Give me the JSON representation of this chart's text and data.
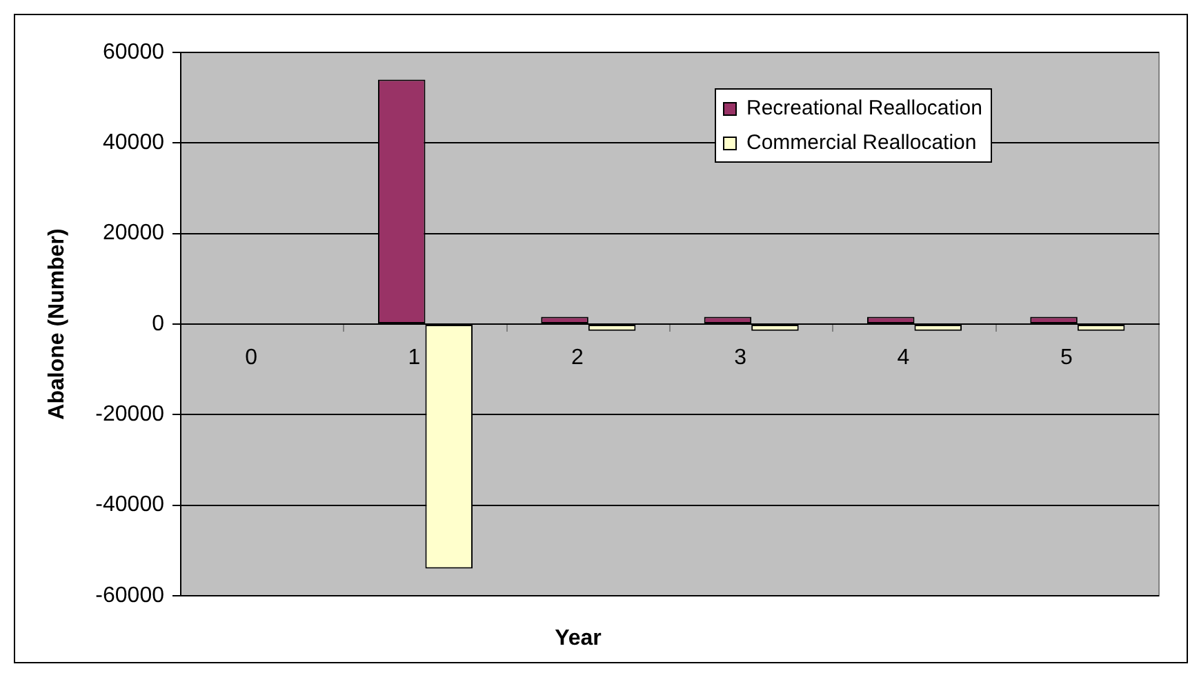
{
  "chart_data": {
    "type": "bar",
    "xlabel": "Year",
    "ylabel": "Abalone (Number)",
    "categories": [
      "0",
      "1",
      "2",
      "3",
      "4",
      "5"
    ],
    "series": [
      {
        "name": "Recreational Reallocation",
        "color": "#993366",
        "values": [
          0,
          54000,
          1600,
          1600,
          1600,
          1600
        ]
      },
      {
        "name": "Commercial Reallocation",
        "color": "#ffffcc",
        "values": [
          0,
          -54000,
          -1500,
          -1500,
          -1500,
          -1500
        ]
      }
    ],
    "ylim": [
      -60000,
      60000
    ],
    "yticks": [
      -60000,
      -40000,
      -20000,
      0,
      20000,
      40000,
      60000
    ],
    "grid": "y",
    "legend": "top right"
  }
}
